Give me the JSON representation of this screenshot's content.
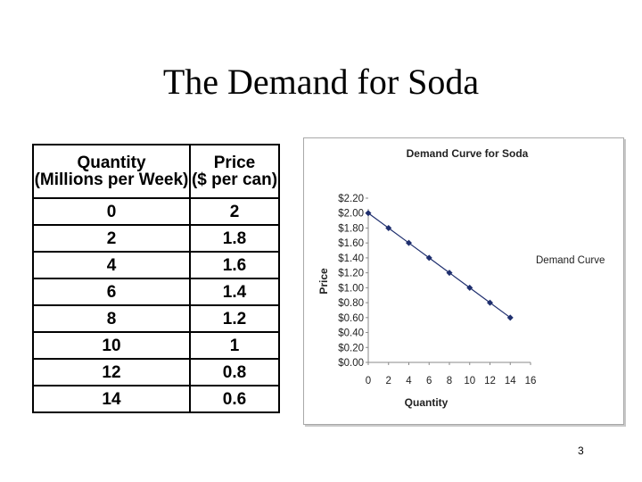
{
  "slide": {
    "title": "The Demand for Soda",
    "page_number": "3"
  },
  "table": {
    "headers": [
      [
        "Quantity",
        "(Millions per Week)"
      ],
      [
        "Price",
        "($ per can)"
      ]
    ],
    "rows": [
      [
        "0",
        "2"
      ],
      [
        "2",
        "1.8"
      ],
      [
        "4",
        "1.6"
      ],
      [
        "6",
        "1.4"
      ],
      [
        "8",
        "1.2"
      ],
      [
        "10",
        "1"
      ],
      [
        "12",
        "0.8"
      ],
      [
        "14",
        "0.6"
      ]
    ]
  },
  "chart_data": {
    "type": "line",
    "title": "Demand Curve for Soda",
    "xlabel": "Quantity",
    "ylabel": "Price",
    "x": [
      0,
      2,
      4,
      6,
      8,
      10,
      12,
      14
    ],
    "series": [
      {
        "name": "Demand Curve",
        "values": [
          2.0,
          1.8,
          1.6,
          1.4,
          1.2,
          1.0,
          0.8,
          0.6
        ]
      }
    ],
    "xlim": [
      0,
      16
    ],
    "ylim": [
      0,
      2.2
    ],
    "x_ticks": [
      "0",
      "2",
      "4",
      "6",
      "8",
      "10",
      "12",
      "14",
      "16"
    ],
    "y_ticks": [
      "$0.00",
      "$0.20",
      "$0.40",
      "$0.60",
      "$0.80",
      "$1.00",
      "$1.20",
      "$1.40",
      "$1.60",
      "$1.80",
      "$2.00",
      "$2.20"
    ],
    "grid": false,
    "legend_position": "right",
    "series_color": "#1f2f6e"
  }
}
